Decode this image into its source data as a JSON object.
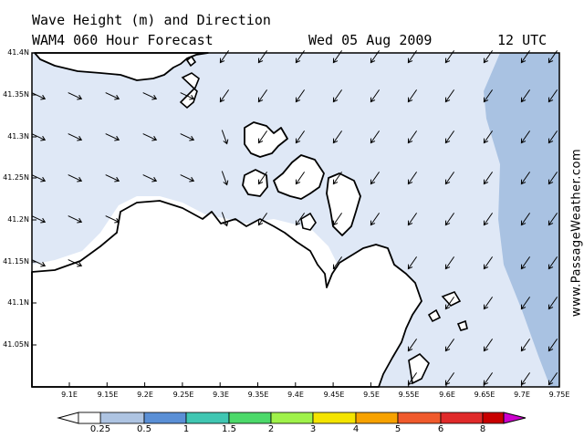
{
  "title": "Wave Height (m) and Direction",
  "subtitle": "WAM4 060 Hour Forecast",
  "date": "Wed 05 Aug 2009",
  "time": "12 UTC",
  "credit": "www.PassageWeather.com",
  "latitude_ticks": [
    "41.4N",
    "41.35N",
    "41.3N",
    "41.25N",
    "41.2N",
    "41.15N",
    "41.1N",
    "41.05N"
  ],
  "longitude_ticks": [
    "9.1E",
    "9.15E",
    "9.2E",
    "9.25E",
    "9.3E",
    "9.35E",
    "9.4E",
    "9.45E",
    "9.5E",
    "9.55E",
    "9.6E",
    "9.65E",
    "9.7E",
    "9.75E"
  ],
  "legend": {
    "labels": [
      "0.25",
      "0.5",
      "1",
      "1.5",
      "2",
      "3",
      "4",
      "5",
      "6",
      "8"
    ],
    "colors": [
      "#ffffff",
      "#dfe8f6",
      "#aec4e2",
      "#5a8fd6",
      "#40c6b2",
      "#4cd96a",
      "#9ff24a",
      "#f4e400",
      "#f7a200",
      "#f05a2c",
      "#e02a2a",
      "#c80000",
      "#cc00cc"
    ]
  },
  "colors": {
    "sea_calm": "#dfe8f6",
    "sea_moderate": "#a9c2e2",
    "land": "#ffffff",
    "coastline": "#000000"
  }
}
